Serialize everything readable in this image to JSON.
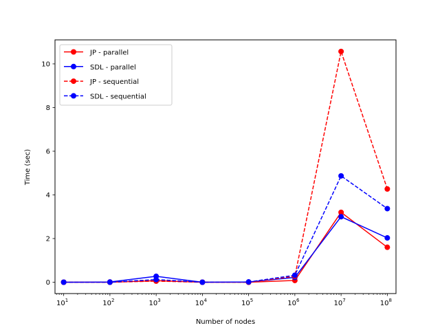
{
  "chart_data": {
    "type": "line",
    "xlabel": "Number of nodes",
    "ylabel": "Time (sec)",
    "x_scale": "log",
    "x": [
      10,
      100,
      1000,
      10000,
      100000,
      1000000,
      10000000,
      100000000
    ],
    "x_tick_labels": [
      {
        "base": "10",
        "exp": "1"
      },
      {
        "base": "10",
        "exp": "2"
      },
      {
        "base": "10",
        "exp": "3"
      },
      {
        "base": "10",
        "exp": "4"
      },
      {
        "base": "10",
        "exp": "5"
      },
      {
        "base": "10",
        "exp": "6"
      },
      {
        "base": "10",
        "exp": "7"
      },
      {
        "base": "10",
        "exp": "8"
      }
    ],
    "y_ticks": [
      0,
      2,
      4,
      6,
      8,
      10
    ],
    "ylim": [
      -0.52,
      11.1
    ],
    "grid": false,
    "legend_position": "top-left",
    "series": [
      {
        "name": "JP - parallel",
        "color": "#ff0000",
        "linestyle": "solid",
        "marker": "circle",
        "values": [
          0.0,
          0.0,
          0.07,
          0.0,
          0.0,
          0.08,
          3.2,
          1.6
        ]
      },
      {
        "name": "SDL - parallel",
        "color": "#0000ff",
        "linestyle": "solid",
        "marker": "circle",
        "values": [
          0.0,
          0.01,
          0.27,
          0.0,
          0.01,
          0.22,
          3.0,
          2.03
        ]
      },
      {
        "name": "JP - sequential",
        "color": "#ff0000",
        "linestyle": "dashed",
        "marker": "circle",
        "values": [
          0.0,
          0.0,
          0.05,
          0.0,
          0.0,
          0.27,
          10.57,
          4.27
        ]
      },
      {
        "name": "SDL - sequential",
        "color": "#0000ff",
        "linestyle": "dashed",
        "marker": "circle",
        "values": [
          0.0,
          0.0,
          0.12,
          0.0,
          0.01,
          0.32,
          4.87,
          3.37
        ]
      }
    ]
  }
}
